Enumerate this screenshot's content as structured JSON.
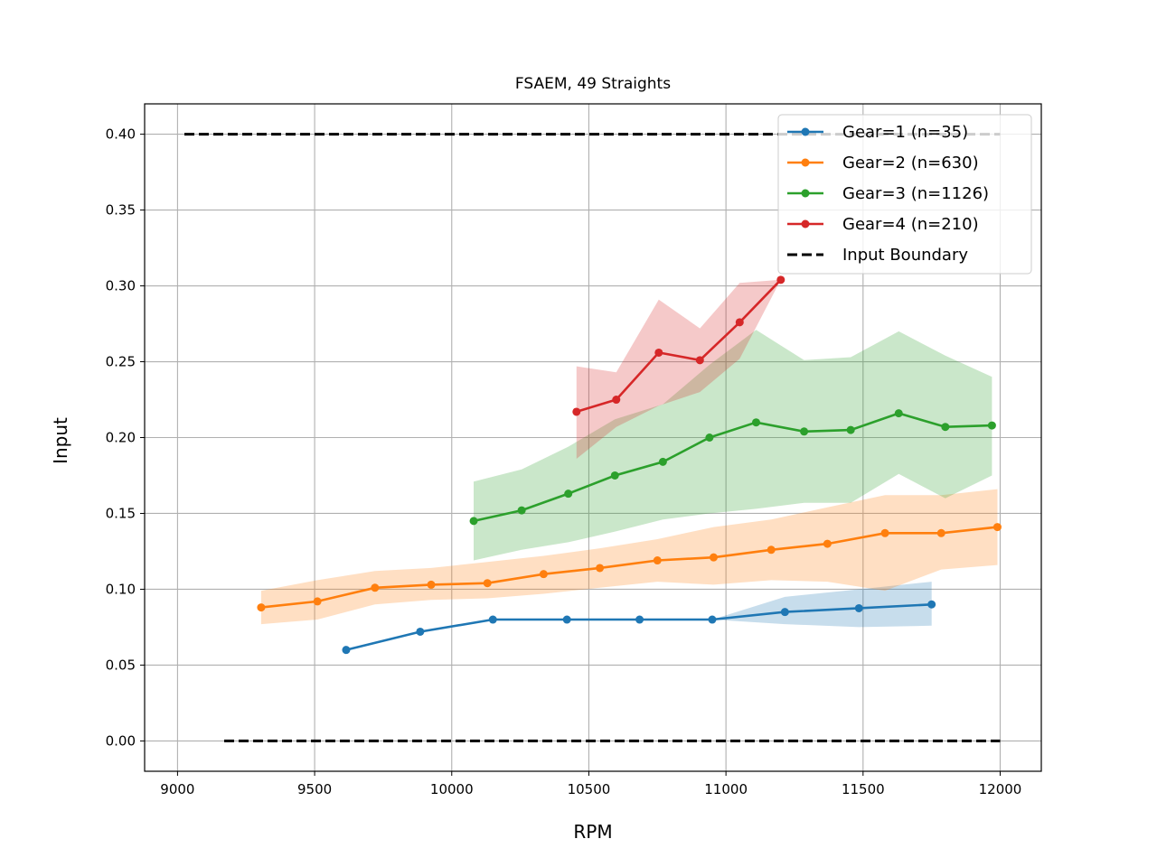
{
  "chart_data": {
    "type": "line",
    "title": "FSAEM, 49 Straights",
    "xlabel": "RPM",
    "ylabel": "Input",
    "xlim": [
      8880,
      12150
    ],
    "ylim": [
      -0.02,
      0.42
    ],
    "xticks": [
      9000,
      9500,
      10000,
      10500,
      11000,
      11500,
      12000
    ],
    "yticks": [
      0.0,
      0.05,
      0.1,
      0.15,
      0.2,
      0.25,
      0.3,
      0.35,
      0.4
    ],
    "ytick_labels": [
      "0.00",
      "0.05",
      "0.10",
      "0.15",
      "0.20",
      "0.25",
      "0.30",
      "0.35",
      "0.40"
    ],
    "grid": true,
    "legend_position": "top-right",
    "series": [
      {
        "name": "Gear=1 (n=35)",
        "color": "#1f77b4",
        "x": [
          9615,
          9885,
          10150,
          10420,
          10685,
          10950,
          11215,
          11485,
          11750
        ],
        "y": [
          0.06,
          0.072,
          0.08,
          0.08,
          0.08,
          0.08,
          0.085,
          0.0875,
          0.09
        ],
        "band_low": [
          0.06,
          0.072,
          0.08,
          0.08,
          0.08,
          0.08,
          0.077,
          0.075,
          0.076
        ],
        "band_high": [
          0.06,
          0.072,
          0.08,
          0.08,
          0.08,
          0.08,
          0.095,
          0.1,
          0.105
        ]
      },
      {
        "name": "Gear=2 (n=630)",
        "color": "#ff7f0e",
        "x": [
          9305,
          9510,
          9720,
          9925,
          10130,
          10335,
          10540,
          10750,
          10955,
          11165,
          11370,
          11580,
          11785,
          11990
        ],
        "y": [
          0.088,
          0.092,
          0.101,
          0.103,
          0.104,
          0.11,
          0.114,
          0.119,
          0.121,
          0.126,
          0.13,
          0.137,
          0.137,
          0.141
        ],
        "band_low": [
          0.077,
          0.08,
          0.09,
          0.093,
          0.094,
          0.097,
          0.101,
          0.105,
          0.103,
          0.106,
          0.105,
          0.099,
          0.113,
          0.116
        ],
        "band_high": [
          0.099,
          0.106,
          0.112,
          0.114,
          0.118,
          0.122,
          0.127,
          0.133,
          0.141,
          0.146,
          0.154,
          0.162,
          0.162,
          0.166
        ]
      },
      {
        "name": "Gear=3 (n=1126)",
        "color": "#2ca02c",
        "x": [
          10080,
          10255,
          10425,
          10595,
          10770,
          10940,
          11110,
          11285,
          11455,
          11630,
          11800,
          11970
        ],
        "y": [
          0.145,
          0.152,
          0.163,
          0.175,
          0.184,
          0.2,
          0.21,
          0.204,
          0.205,
          0.216,
          0.207,
          0.208
        ],
        "band_low": [
          0.119,
          0.126,
          0.131,
          0.138,
          0.146,
          0.15,
          0.153,
          0.157,
          0.157,
          0.176,
          0.16,
          0.175
        ],
        "band_high": [
          0.171,
          0.179,
          0.194,
          0.212,
          0.222,
          0.248,
          0.271,
          0.251,
          0.253,
          0.27,
          0.254,
          0.24
        ]
      },
      {
        "name": "Gear=4 (n=210)",
        "color": "#d62728",
        "x": [
          10455,
          10600,
          10755,
          10905,
          11050,
          11200
        ],
        "y": [
          0.217,
          0.225,
          0.256,
          0.251,
          0.276,
          0.304
        ],
        "band_low": [
          0.186,
          0.207,
          0.221,
          0.23,
          0.252,
          0.304
        ],
        "band_high": [
          0.247,
          0.243,
          0.291,
          0.272,
          0.302,
          0.304
        ]
      },
      {
        "name": "Input Boundary",
        "color": "#000000",
        "dashed": true,
        "segments": [
          {
            "x": [
              9025,
              12000
            ],
            "y": [
              0.4,
              0.4
            ]
          },
          {
            "x": [
              9170,
              12000
            ],
            "y": [
              0.0,
              0.0
            ]
          }
        ]
      }
    ]
  }
}
